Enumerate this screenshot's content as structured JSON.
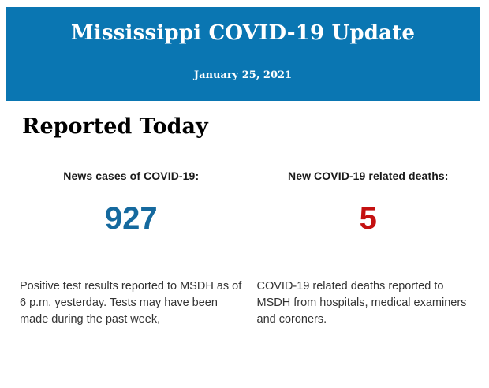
{
  "page": {
    "background_color": "#ffffff"
  },
  "banner": {
    "background_color": "#0a76b2",
    "title": "Mississippi COVID-19 Update",
    "date": "January 25, 2021",
    "text_color": "#ffffff"
  },
  "section": {
    "heading": "Reported Today"
  },
  "stats": [
    {
      "label": "News cases of COVID-19:",
      "value": "927",
      "value_color": "#15699e",
      "description": "Positive test results reported to MSDH as of 6 p.m. yesterday. Tests may have been made during the past week,"
    },
    {
      "label": "New COVID-19 related deaths:",
      "value": "5",
      "value_color": "#c41111",
      "description": "COVID-19 related deaths reported to MSDH from hospitals, medical examiners and coroners."
    }
  ]
}
